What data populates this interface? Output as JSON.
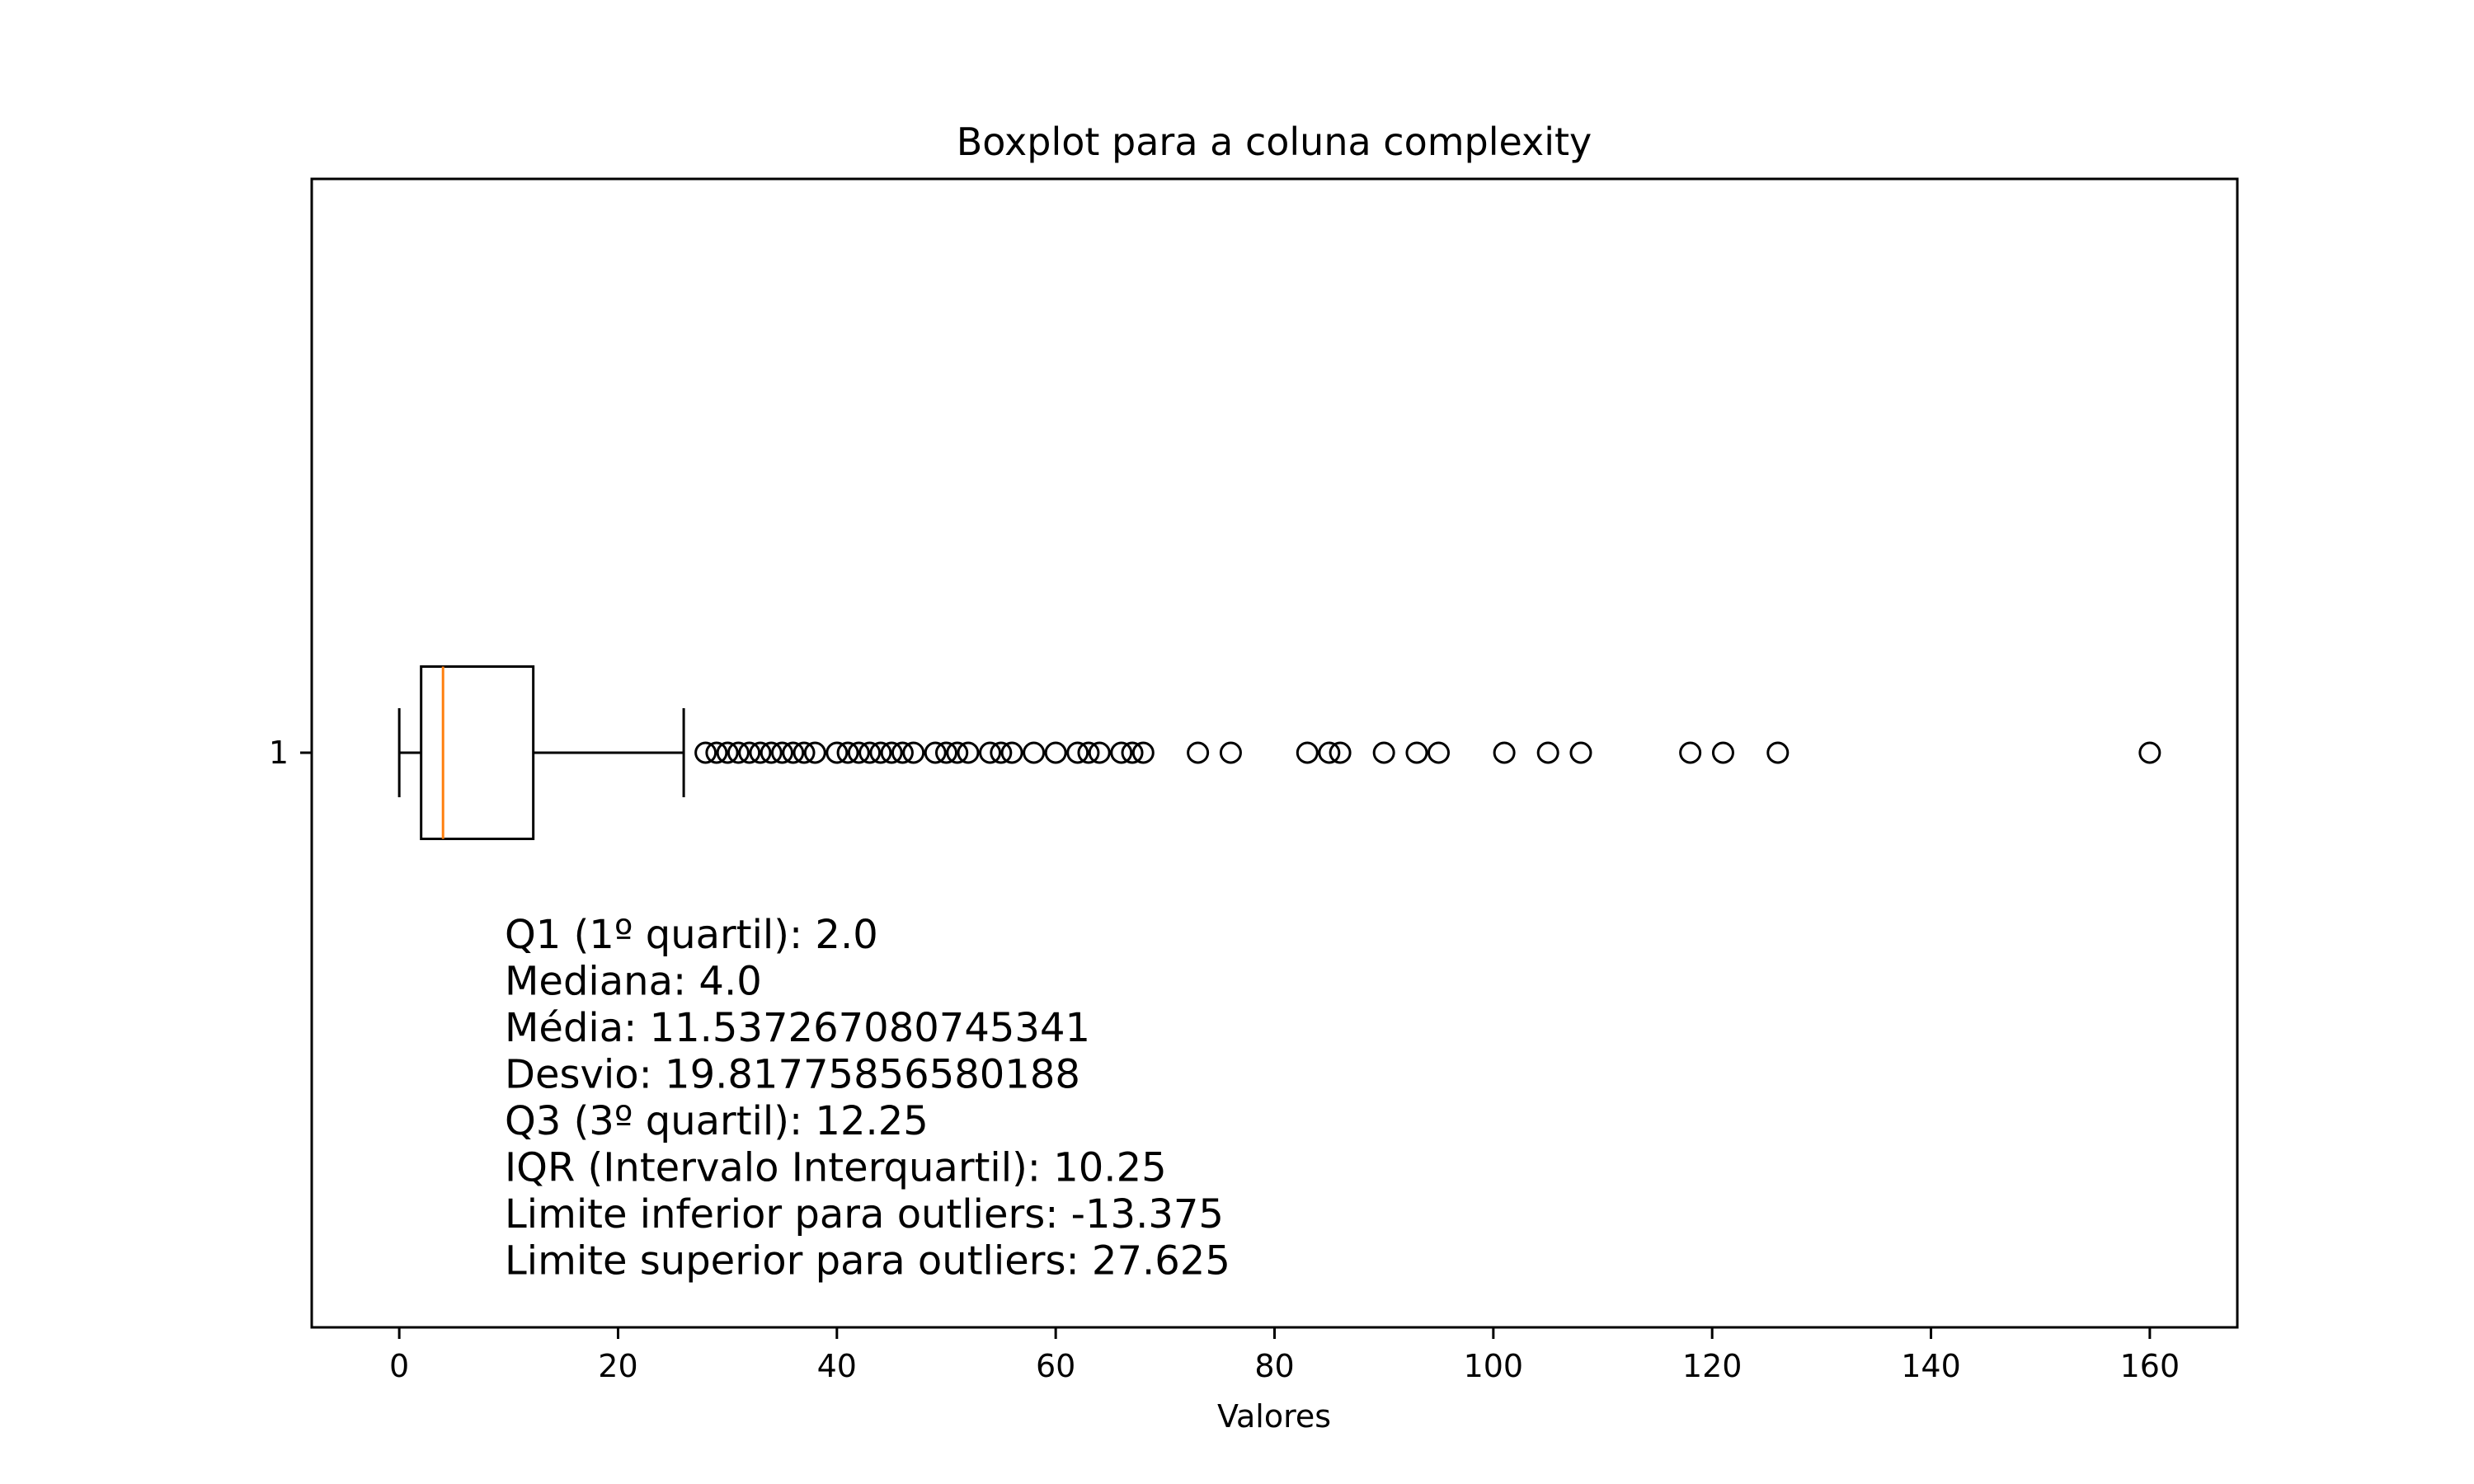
{
  "chart_data": {
    "type": "boxplot",
    "orientation": "horizontal",
    "title": "Boxplot para a coluna complexity",
    "xlabel": "Valores",
    "ylabel": "",
    "xlim": [
      -8,
      168
    ],
    "xticks": [
      0,
      20,
      40,
      60,
      80,
      100,
      120,
      140,
      160
    ],
    "yticks": [
      "1"
    ],
    "grid": false,
    "box": {
      "category": "1",
      "whisker_low": 0,
      "q1": 2.0,
      "median": 4.0,
      "q3": 12.25,
      "whisker_high": 26,
      "median_color": "#ff7f0e",
      "outliers": [
        28,
        29,
        30,
        31,
        32,
        33,
        34,
        35,
        36,
        37,
        38,
        40,
        41,
        42,
        43,
        44,
        45,
        46,
        47,
        49,
        50,
        51,
        52,
        54,
        55,
        56,
        58,
        60,
        62,
        63,
        64,
        66,
        67,
        68,
        73,
        76,
        83,
        85,
        86,
        90,
        93,
        95,
        101,
        105,
        108,
        118,
        121,
        126,
        160
      ]
    },
    "annotations": [
      "Q1 (1º quartil): 2.0",
      "Mediana: 4.0",
      "Média: 11.537267080745341",
      "Desvio: 19.81775856580188",
      "Q3 (3º quartil): 12.25",
      "IQR (Intervalo Interquartil): 10.25",
      "Limite inferior para outliers: -13.375",
      "Limite superior para outliers: 27.625"
    ]
  }
}
